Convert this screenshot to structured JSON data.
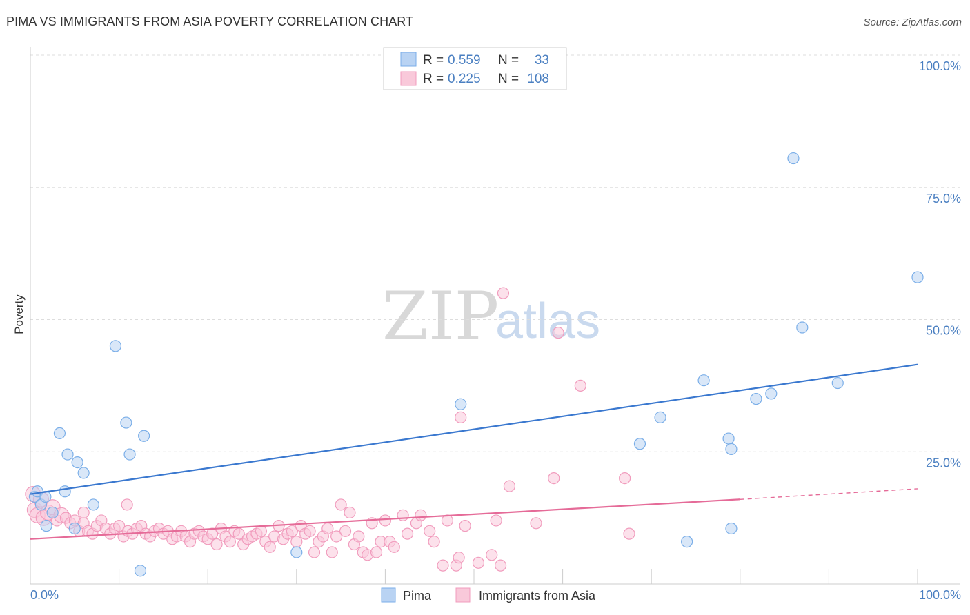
{
  "chart_data": {
    "type": "scatter",
    "title": "PIMA VS IMMIGRANTS FROM ASIA POVERTY CORRELATION CHART",
    "source": "Source: ZipAtlas.com",
    "ylabel": "Poverty",
    "xlabel": "",
    "xlim": [
      0,
      100
    ],
    "ylim": [
      0,
      100
    ],
    "x_tick_labels": [
      "0.0%",
      "100.0%"
    ],
    "y_tick_labels": [
      {
        "value": 25,
        "label": "25.0%"
      },
      {
        "value": 50,
        "label": "50.0%"
      },
      {
        "value": 75,
        "label": "75.0%"
      },
      {
        "value": 100,
        "label": "100.0%"
      }
    ],
    "grid": true,
    "watermark": {
      "left": "ZIP",
      "right": "atlas"
    },
    "legend": {
      "placement": "top-center",
      "rows": [
        {
          "r_label": "R =",
          "r_value": "0.559",
          "n_label": "N =",
          "n_value": "33"
        },
        {
          "r_label": "R =",
          "r_value": "0.225",
          "n_label": "N =",
          "n_value": "108"
        }
      ]
    },
    "series": [
      {
        "name": "Pima",
        "color": "#7aaee8",
        "fill": "#b9d3f3",
        "trend_color": "#3a78cf",
        "trend": {
          "x0": 0,
          "y0": 17.0,
          "x1": 100,
          "y1": 41.5
        },
        "points": [
          [
            0.5,
            16.5
          ],
          [
            0.8,
            17.5
          ],
          [
            1.2,
            15.0
          ],
          [
            1.8,
            11.0
          ],
          [
            1.7,
            16.5
          ],
          [
            2.5,
            13.5
          ],
          [
            3.3,
            28.5
          ],
          [
            4.2,
            24.5
          ],
          [
            3.9,
            17.5
          ],
          [
            5.3,
            23.0
          ],
          [
            5.0,
            10.5
          ],
          [
            6.0,
            21.0
          ],
          [
            7.1,
            15.0
          ],
          [
            9.6,
            45.0
          ],
          [
            10.8,
            30.5
          ],
          [
            11.2,
            24.5
          ],
          [
            12.8,
            28.0
          ],
          [
            12.4,
            2.5
          ],
          [
            30.0,
            6.0
          ],
          [
            48.5,
            34.0
          ],
          [
            68.7,
            26.5
          ],
          [
            71.0,
            31.5
          ],
          [
            74.0,
            8.0
          ],
          [
            75.9,
            38.5
          ],
          [
            78.7,
            27.5
          ],
          [
            79.0,
            25.5
          ],
          [
            79.0,
            10.5
          ],
          [
            81.8,
            35.0
          ],
          [
            83.5,
            36.0
          ],
          [
            86.0,
            80.5
          ],
          [
            87.0,
            48.5
          ],
          [
            91.0,
            38.0
          ],
          [
            100.0,
            58.0
          ]
        ]
      },
      {
        "name": "Immigrants from Asia",
        "color": "#f19cbd",
        "fill": "#f9c9da",
        "trend_color": "#e56b98",
        "trend": {
          "x0": 0,
          "y0": 8.5,
          "x1": 80,
          "y1": 16.0
        },
        "trend_dashed": {
          "x0": 80,
          "y0": 16.0,
          "x1": 100,
          "y1": 18.0
        },
        "points": [
          [
            0.3,
            17.0
          ],
          [
            0.5,
            14.0
          ],
          [
            0.8,
            13.0
          ],
          [
            1.2,
            16.0
          ],
          [
            1.5,
            12.5
          ],
          [
            2.0,
            13.5
          ],
          [
            2.5,
            14.5
          ],
          [
            3.0,
            12.0
          ],
          [
            3.5,
            13.0
          ],
          [
            4.0,
            12.5
          ],
          [
            4.5,
            11.5
          ],
          [
            5.0,
            12.0
          ],
          [
            5.5,
            10.0
          ],
          [
            6.0,
            11.5
          ],
          [
            6.5,
            10.0
          ],
          [
            7.0,
            9.5
          ],
          [
            7.5,
            11.0
          ],
          [
            8.0,
            12.0
          ],
          [
            8.5,
            10.5
          ],
          [
            9.0,
            9.5
          ],
          [
            9.5,
            10.5
          ],
          [
            10.0,
            11.0
          ],
          [
            10.5,
            9.0
          ],
          [
            11.0,
            10.0
          ],
          [
            11.5,
            9.5
          ],
          [
            12.0,
            10.5
          ],
          [
            12.5,
            11.0
          ],
          [
            13.0,
            9.5
          ],
          [
            13.5,
            9.0
          ],
          [
            14.0,
            10.0
          ],
          [
            14.5,
            10.5
          ],
          [
            15.0,
            9.5
          ],
          [
            15.5,
            10.0
          ],
          [
            16.0,
            8.5
          ],
          [
            16.5,
            9.0
          ],
          [
            17.0,
            10.0
          ],
          [
            17.5,
            9.0
          ],
          [
            18.0,
            8.0
          ],
          [
            18.5,
            9.5
          ],
          [
            19.0,
            10.0
          ],
          [
            19.5,
            9.0
          ],
          [
            20.0,
            8.5
          ],
          [
            20.5,
            9.5
          ],
          [
            21.0,
            7.5
          ],
          [
            21.5,
            10.5
          ],
          [
            22.0,
            9.0
          ],
          [
            22.5,
            8.0
          ],
          [
            23.0,
            10.0
          ],
          [
            23.5,
            9.5
          ],
          [
            24.0,
            7.5
          ],
          [
            24.5,
            8.5
          ],
          [
            25.0,
            9.0
          ],
          [
            25.5,
            9.5
          ],
          [
            26.0,
            10.0
          ],
          [
            26.5,
            8.0
          ],
          [
            27.0,
            7.0
          ],
          [
            27.5,
            9.0
          ],
          [
            28.0,
            11.0
          ],
          [
            28.5,
            8.5
          ],
          [
            29.0,
            9.5
          ],
          [
            29.5,
            10.0
          ],
          [
            30.0,
            8.0
          ],
          [
            30.5,
            11.0
          ],
          [
            31.0,
            9.5
          ],
          [
            31.5,
            10.0
          ],
          [
            32.0,
            6.0
          ],
          [
            32.5,
            8.0
          ],
          [
            33.0,
            9.0
          ],
          [
            33.5,
            10.5
          ],
          [
            34.0,
            6.0
          ],
          [
            34.5,
            9.0
          ],
          [
            35.0,
            15.0
          ],
          [
            35.5,
            10.0
          ],
          [
            36.0,
            13.5
          ],
          [
            36.5,
            7.5
          ],
          [
            37.0,
            9.0
          ],
          [
            37.5,
            6.0
          ],
          [
            38.0,
            5.5
          ],
          [
            38.5,
            11.5
          ],
          [
            39.0,
            6.0
          ],
          [
            39.5,
            8.0
          ],
          [
            40.0,
            12.0
          ],
          [
            40.5,
            8.0
          ],
          [
            41.0,
            7.0
          ],
          [
            42.0,
            13.0
          ],
          [
            42.5,
            9.5
          ],
          [
            43.5,
            11.5
          ],
          [
            44.0,
            13.0
          ],
          [
            45.0,
            10.0
          ],
          [
            45.5,
            8.0
          ],
          [
            46.5,
            3.5
          ],
          [
            47.0,
            12.0
          ],
          [
            48.0,
            3.5
          ],
          [
            48.3,
            5.0
          ],
          [
            48.5,
            31.5
          ],
          [
            49.0,
            11.0
          ],
          [
            50.5,
            4.0
          ],
          [
            52.0,
            5.5
          ],
          [
            52.5,
            12.0
          ],
          [
            53.0,
            3.5
          ],
          [
            53.3,
            55.0
          ],
          [
            54.0,
            18.5
          ],
          [
            57.0,
            11.5
          ],
          [
            59.0,
            20.0
          ],
          [
            59.5,
            47.5
          ],
          [
            62.0,
            37.5
          ],
          [
            67.0,
            20.0
          ],
          [
            67.5,
            9.5
          ],
          [
            6.0,
            13.5
          ],
          [
            10.9,
            15.0
          ]
        ]
      }
    ]
  },
  "bottom_legend": [
    {
      "label": "Pima"
    },
    {
      "label": "Immigrants from Asia"
    }
  ]
}
